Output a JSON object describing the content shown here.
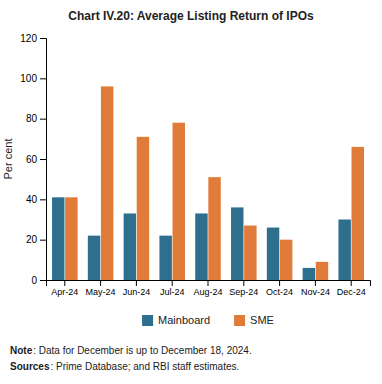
{
  "chart_data": {
    "type": "bar",
    "title": "Chart IV.20: Average Listing Return of IPOs",
    "y_label": "Per cent",
    "categories": [
      "Apr-24",
      "May-24",
      "Jun-24",
      "Jul-24",
      "Aug-24",
      "Sep-24",
      "Oct-24",
      "Nov-24",
      "Dec-24"
    ],
    "series": [
      {
        "name": "Mainboard",
        "color": "#2e6f8e",
        "values": [
          41,
          22,
          33,
          22,
          33,
          36,
          26,
          6,
          30
        ]
      },
      {
        "name": "SME",
        "color": "#e07b39",
        "values": [
          41,
          96,
          71,
          78,
          51,
          27,
          20,
          9,
          66
        ]
      }
    ],
    "ylim": [
      0,
      120
    ],
    "yticks": [
      0,
      20,
      40,
      60,
      80,
      100,
      120
    ],
    "grid": false,
    "legend": "bottom",
    "notes": [
      {
        "label": "Note",
        "text": ": Data for December is up to December 18, 2024."
      },
      {
        "label": "Sources",
        "text": ": Prime Database; and RBI staff estimates."
      }
    ]
  }
}
